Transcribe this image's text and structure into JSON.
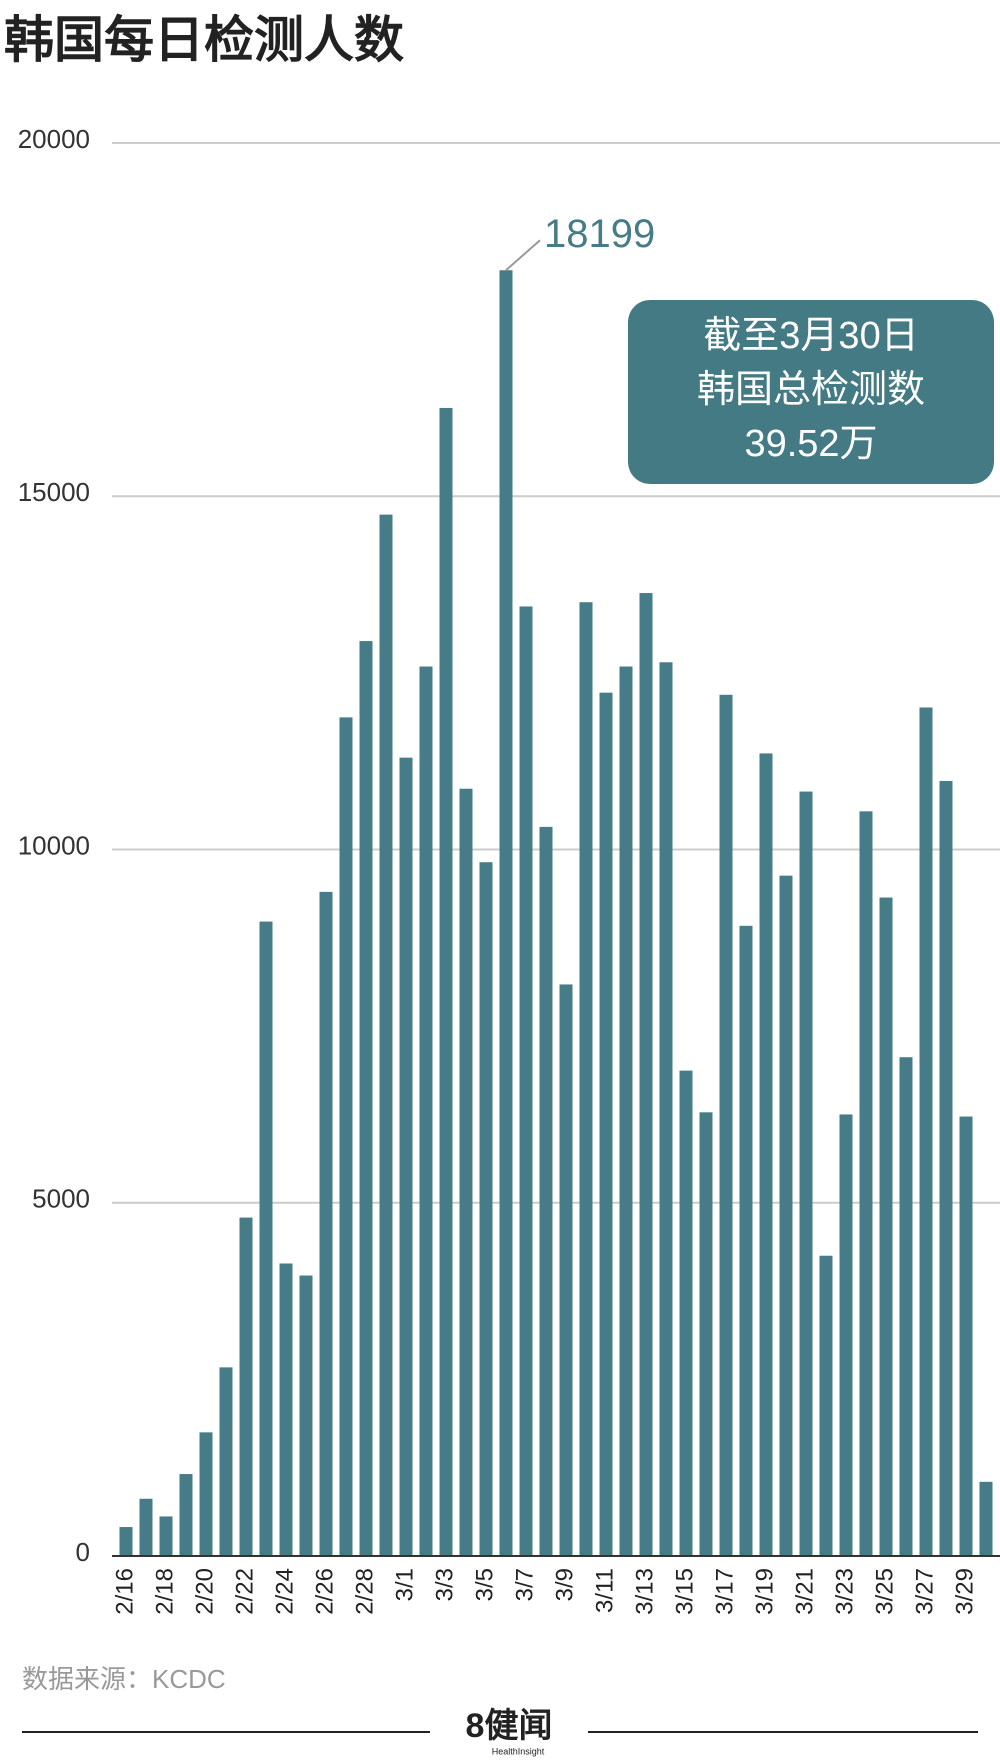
{
  "chart_data": {
    "type": "bar",
    "title": "韩国每日检测人数",
    "categories": [
      "2/16",
      null,
      "2/18",
      null,
      "2/20",
      null,
      "2/22",
      null,
      "2/24",
      null,
      "2/26",
      null,
      "2/28",
      null,
      "3/1",
      null,
      "3/3",
      null,
      "3/5",
      null,
      "3/7",
      null,
      "3/9",
      null,
      "3/11",
      null,
      "3/13",
      null,
      "3/15",
      null,
      "3/17",
      null,
      "3/19",
      null,
      "3/21",
      null,
      "3/23",
      null,
      "3/25",
      null,
      "3/27",
      null,
      "3/29",
      null
    ],
    "values": [
      410,
      810,
      560,
      1160,
      1750,
      2670,
      4790,
      8980,
      4140,
      3970,
      9400,
      11870,
      12950,
      14740,
      11300,
      12590,
      16250,
      10860,
      9820,
      18199,
      13440,
      10320,
      8090,
      13500,
      12220,
      12590,
      13630,
      12650,
      6870,
      6280,
      12190,
      8920,
      11360,
      9630,
      10820,
      4250,
      6250,
      10540,
      9320,
      7060,
      12010,
      10970,
      6220,
      1050
    ],
    "labeled_index": 19,
    "color": "#467c87",
    "ylim": [
      0,
      20000
    ],
    "yticks": [
      0,
      5000,
      10000,
      15000,
      20000
    ],
    "grid": true,
    "annotation": {
      "lines": [
        "截至3月30日",
        "韩国总检测数",
        "39.52万"
      ],
      "color": "#447a84"
    },
    "source": "数据来源：KCDC"
  },
  "footer": {
    "logo": "8健闻",
    "tagline": "HealthInsight"
  }
}
